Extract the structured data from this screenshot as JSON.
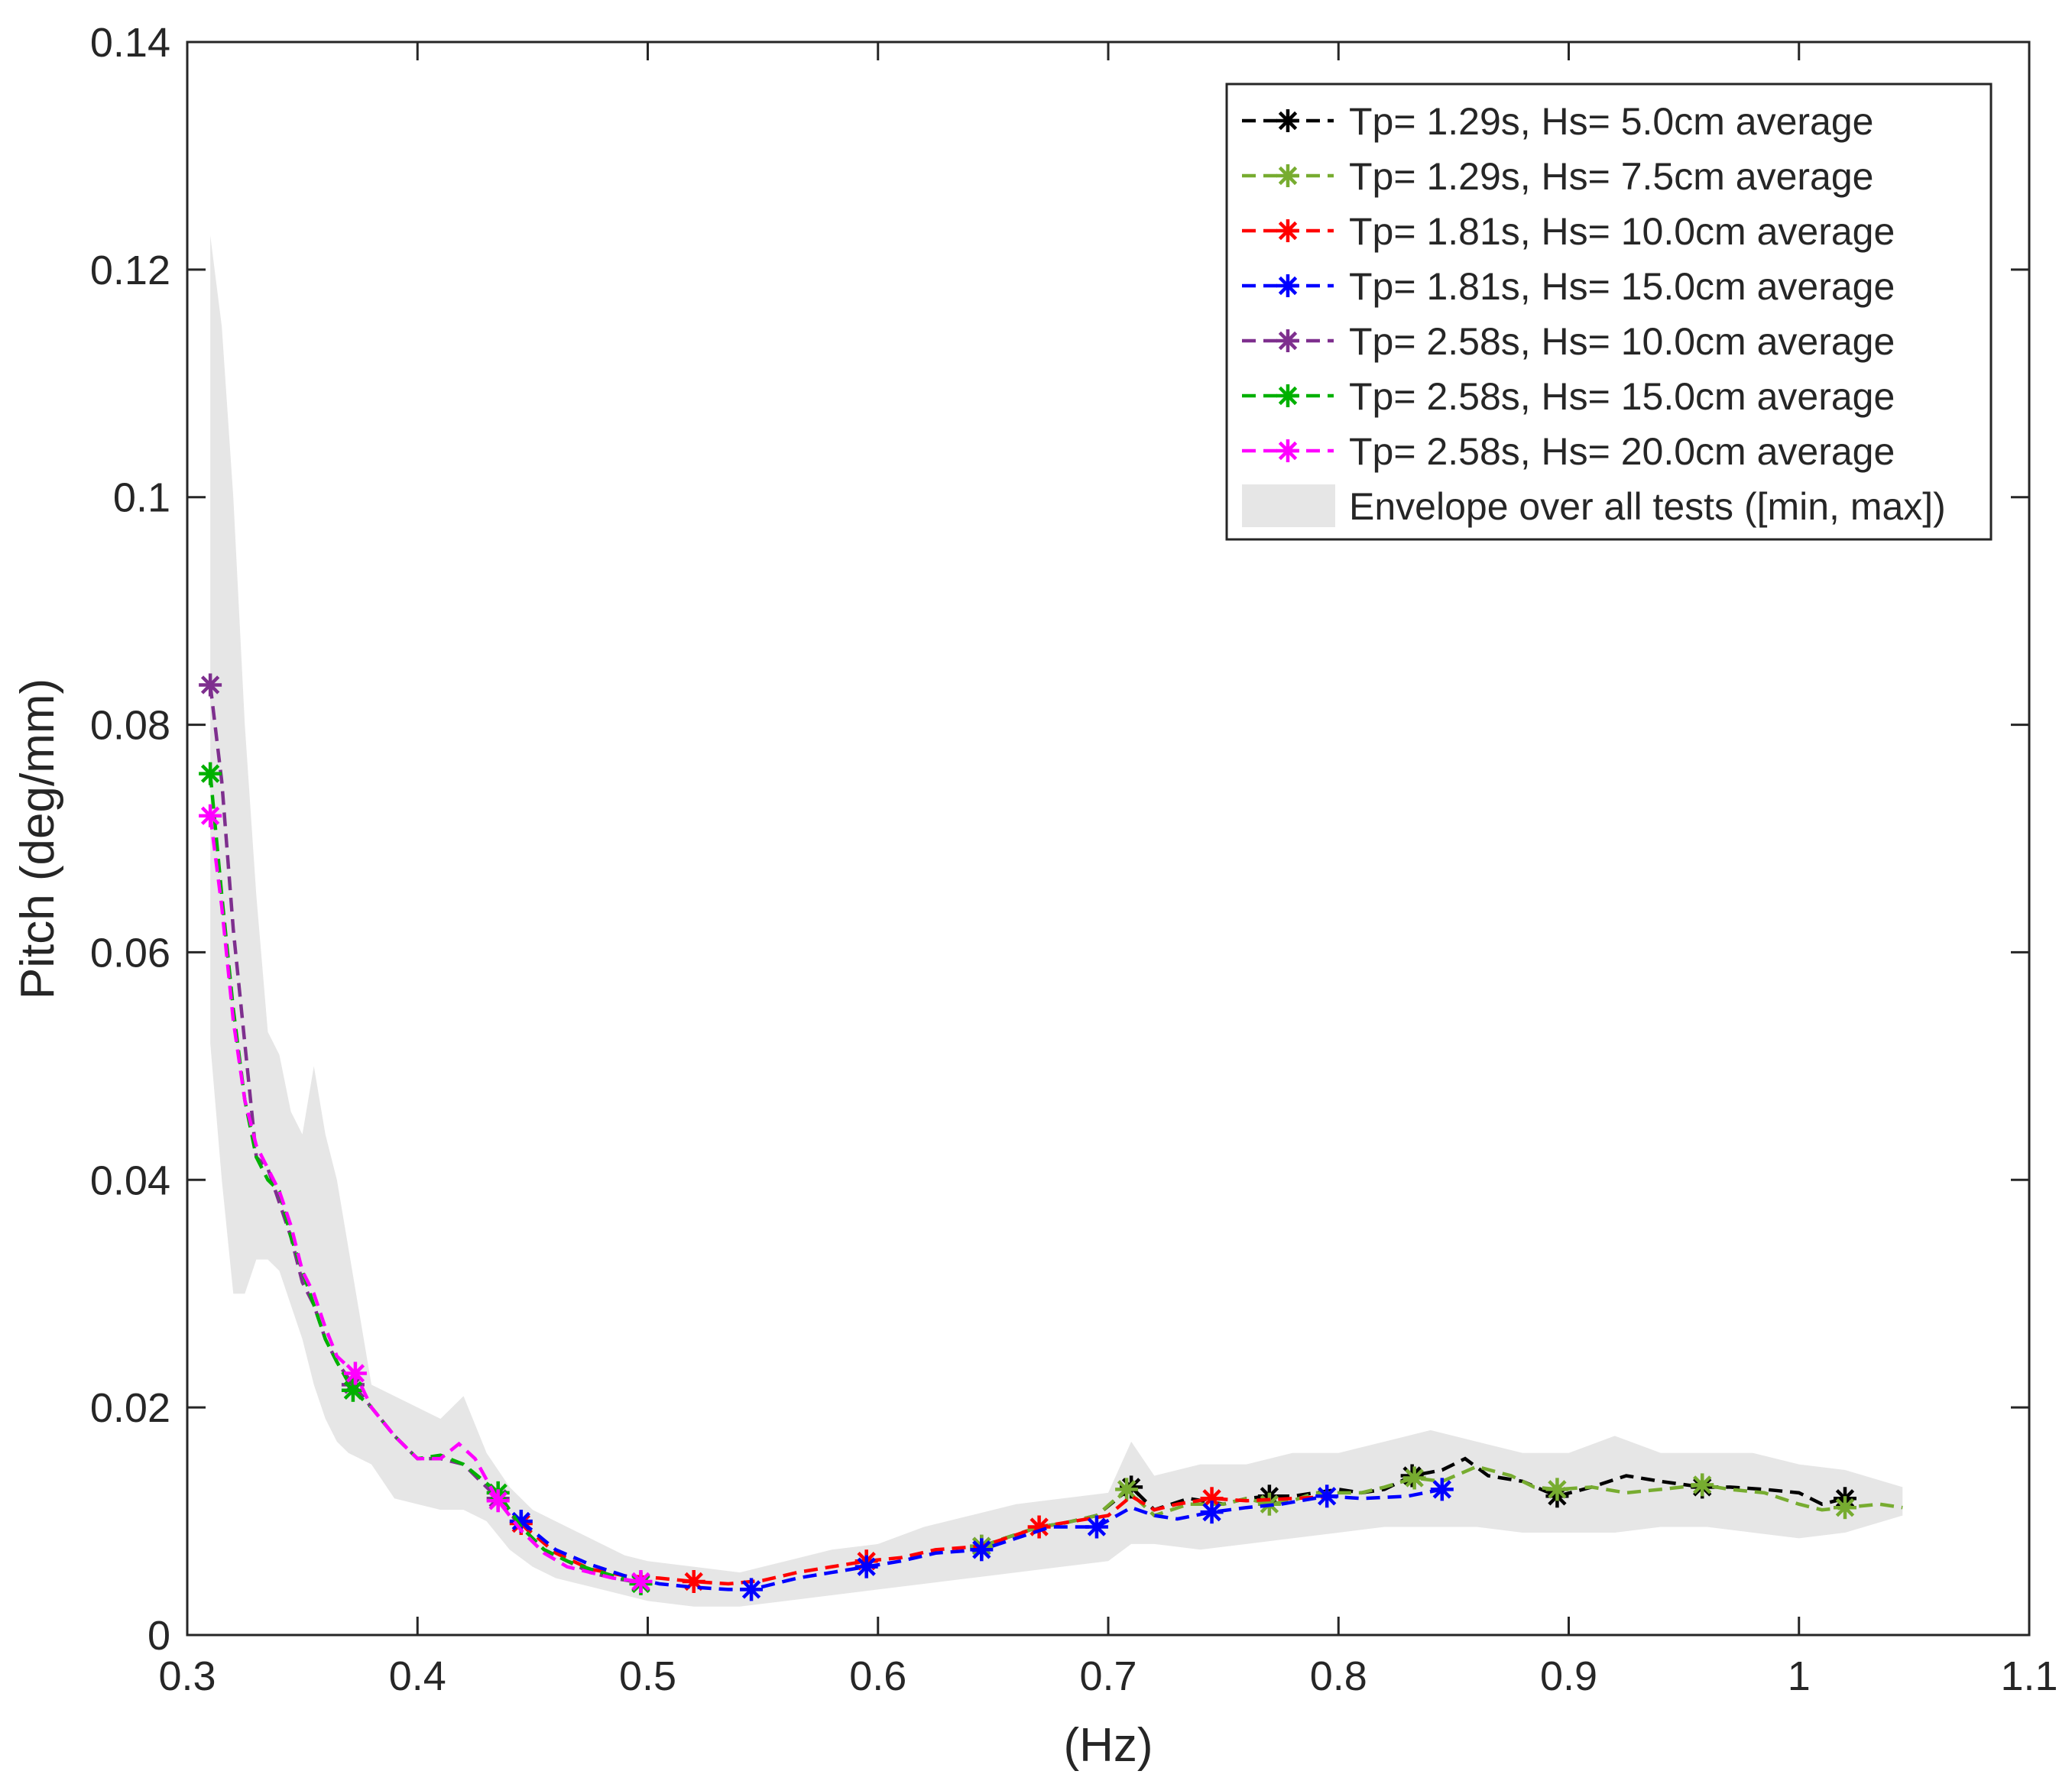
{
  "chart_data": {
    "type": "line",
    "title": "",
    "xlabel": "(Hz)",
    "ylabel": "Pitch (deg/mm)",
    "xlim": [
      0.3,
      1.1
    ],
    "ylim": [
      0,
      0.14
    ],
    "xticks": [
      "0.3",
      "0.4",
      "0.5",
      "0.6",
      "0.7",
      "0.8",
      "0.9",
      "1",
      "1.1"
    ],
    "yticks": [
      "0",
      "0.02",
      "0.04",
      "0.06",
      "0.08",
      "0.1",
      "0.12",
      "0.14"
    ],
    "legend_position": "top-right",
    "envelope": {
      "name": "Envelope over all tests ([min, max])",
      "color": "#e6e6e6",
      "x": [
        0.31,
        0.315,
        0.32,
        0.325,
        0.33,
        0.335,
        0.34,
        0.345,
        0.35,
        0.355,
        0.36,
        0.365,
        0.37,
        0.38,
        0.39,
        0.4,
        0.41,
        0.42,
        0.43,
        0.44,
        0.45,
        0.46,
        0.47,
        0.48,
        0.49,
        0.5,
        0.52,
        0.54,
        0.56,
        0.58,
        0.6,
        0.62,
        0.64,
        0.66,
        0.68,
        0.7,
        0.71,
        0.72,
        0.74,
        0.76,
        0.78,
        0.8,
        0.82,
        0.84,
        0.86,
        0.88,
        0.9,
        0.92,
        0.94,
        0.96,
        0.98,
        1.0,
        1.02,
        1.045
      ],
      "upper": [
        0.123,
        0.115,
        0.1,
        0.08,
        0.065,
        0.053,
        0.051,
        0.046,
        0.044,
        0.05,
        0.044,
        0.04,
        0.034,
        0.022,
        0.021,
        0.02,
        0.019,
        0.021,
        0.016,
        0.013,
        0.011,
        0.01,
        0.009,
        0.008,
        0.007,
        0.0065,
        0.006,
        0.0055,
        0.0065,
        0.0075,
        0.008,
        0.0095,
        0.0105,
        0.0115,
        0.012,
        0.0125,
        0.017,
        0.014,
        0.015,
        0.015,
        0.016,
        0.016,
        0.017,
        0.018,
        0.017,
        0.016,
        0.016,
        0.0175,
        0.016,
        0.016,
        0.016,
        0.015,
        0.0145,
        0.013
      ],
      "lower": [
        0.052,
        0.04,
        0.03,
        0.03,
        0.033,
        0.033,
        0.032,
        0.029,
        0.026,
        0.022,
        0.019,
        0.017,
        0.016,
        0.015,
        0.012,
        0.0115,
        0.011,
        0.011,
        0.01,
        0.0075,
        0.006,
        0.005,
        0.0045,
        0.004,
        0.0035,
        0.003,
        0.0025,
        0.0025,
        0.003,
        0.0035,
        0.004,
        0.0045,
        0.005,
        0.0055,
        0.006,
        0.0065,
        0.008,
        0.008,
        0.0075,
        0.008,
        0.0085,
        0.009,
        0.0095,
        0.0095,
        0.0095,
        0.009,
        0.009,
        0.009,
        0.0095,
        0.0095,
        0.009,
        0.0085,
        0.009,
        0.0105
      ]
    },
    "series": [
      {
        "name": "Tp= 1.29s, Hs= 5.0cm average",
        "color": "#000000",
        "x": [
          0.645,
          0.655,
          0.67,
          0.68,
          0.695,
          0.71,
          0.72,
          0.735,
          0.75,
          0.76,
          0.77,
          0.78,
          0.79,
          0.8,
          0.81,
          0.82,
          0.832,
          0.845,
          0.855,
          0.865,
          0.88,
          0.895,
          0.91,
          0.925,
          0.94,
          0.958,
          0.97,
          0.985,
          1.0,
          1.01,
          1.02
        ],
        "y": [
          0.0078,
          0.0085,
          0.0095,
          0.0098,
          0.0105,
          0.013,
          0.011,
          0.012,
          0.0115,
          0.012,
          0.0122,
          0.0122,
          0.0125,
          0.0128,
          0.0125,
          0.0128,
          0.014,
          0.0145,
          0.0155,
          0.014,
          0.0135,
          0.0122,
          0.013,
          0.014,
          0.0135,
          0.013,
          0.013,
          0.0128,
          0.0125,
          0.0115,
          0.012
        ],
        "markers_x": [
          0.645,
          0.71,
          0.77,
          0.832,
          0.895,
          0.958,
          1.02
        ],
        "markers_y": [
          0.0078,
          0.013,
          0.0122,
          0.014,
          0.0122,
          0.013,
          0.012
        ]
      },
      {
        "name": "Tp= 1.29s, Hs= 7.5cm average",
        "color": "#77ac30",
        "x": [
          0.645,
          0.655,
          0.67,
          0.68,
          0.695,
          0.708,
          0.72,
          0.735,
          0.75,
          0.76,
          0.77,
          0.78,
          0.79,
          0.8,
          0.81,
          0.82,
          0.833,
          0.845,
          0.86,
          0.875,
          0.885,
          0.895,
          0.91,
          0.925,
          0.94,
          0.958,
          0.97,
          0.985,
          1.0,
          1.01,
          1.02,
          1.035,
          1.045
        ],
        "y": [
          0.0078,
          0.0085,
          0.0095,
          0.0098,
          0.0105,
          0.0128,
          0.0105,
          0.0115,
          0.0115,
          0.012,
          0.0115,
          0.0118,
          0.0125,
          0.0125,
          0.0125,
          0.013,
          0.0138,
          0.0135,
          0.0148,
          0.014,
          0.013,
          0.0128,
          0.013,
          0.0125,
          0.0128,
          0.0132,
          0.0128,
          0.0125,
          0.0115,
          0.011,
          0.0112,
          0.0115,
          0.0112
        ],
        "markers_x": [
          0.645,
          0.708,
          0.77,
          0.833,
          0.895,
          0.958,
          1.02
        ],
        "markers_y": [
          0.0078,
          0.0128,
          0.0115,
          0.0138,
          0.0128,
          0.0132,
          0.0112
        ]
      },
      {
        "name": "Tp= 1.81s, Hs= 10.0cm average",
        "color": "#ff0000",
        "x": [
          0.445,
          0.46,
          0.475,
          0.49,
          0.505,
          0.52,
          0.535,
          0.55,
          0.565,
          0.58,
          0.595,
          0.61,
          0.625,
          0.645,
          0.66,
          0.67,
          0.685,
          0.7,
          0.71,
          0.72,
          0.73,
          0.745,
          0.76,
          0.78,
          0.8
        ],
        "y": [
          0.0098,
          0.0072,
          0.0058,
          0.0052,
          0.005,
          0.0047,
          0.0045,
          0.0048,
          0.0055,
          0.006,
          0.0065,
          0.0068,
          0.0075,
          0.0078,
          0.0088,
          0.0095,
          0.01,
          0.0105,
          0.0122,
          0.011,
          0.0115,
          0.012,
          0.0118,
          0.012,
          0.0122
        ],
        "markers_x": [
          0.445,
          0.52,
          0.595,
          0.67,
          0.745
        ],
        "markers_y": [
          0.0098,
          0.0047,
          0.0065,
          0.0095,
          0.012
        ]
      },
      {
        "name": "Tp= 1.81s, Hs= 15.0cm average",
        "color": "#0000ff",
        "x": [
          0.445,
          0.46,
          0.475,
          0.49,
          0.505,
          0.52,
          0.535,
          0.545,
          0.555,
          0.565,
          0.58,
          0.595,
          0.61,
          0.625,
          0.645,
          0.66,
          0.675,
          0.695,
          0.71,
          0.72,
          0.73,
          0.745,
          0.76,
          0.775,
          0.795,
          0.81,
          0.83,
          0.845
        ],
        "y": [
          0.01,
          0.0075,
          0.0062,
          0.0052,
          0.0045,
          0.0042,
          0.004,
          0.004,
          0.0045,
          0.005,
          0.0055,
          0.006,
          0.0065,
          0.0072,
          0.0075,
          0.0085,
          0.0095,
          0.0095,
          0.0112,
          0.0105,
          0.0102,
          0.0108,
          0.0112,
          0.0115,
          0.0122,
          0.012,
          0.0122,
          0.0128
        ],
        "markers_x": [
          0.445,
          0.545,
          0.595,
          0.645,
          0.695,
          0.745,
          0.795,
          0.845
        ],
        "markers_y": [
          0.01,
          0.004,
          0.006,
          0.0075,
          0.0095,
          0.0108,
          0.0122,
          0.0128
        ]
      },
      {
        "name": "Tp= 2.58s, Hs= 10.0cm average",
        "color": "#7e2f8e",
        "x": [
          0.31,
          0.315,
          0.32,
          0.325,
          0.33,
          0.335,
          0.34,
          0.345,
          0.35,
          0.355,
          0.36,
          0.365,
          0.372,
          0.38,
          0.39,
          0.4,
          0.41,
          0.42,
          0.435,
          0.445,
          0.455,
          0.465,
          0.475,
          0.485,
          0.497
        ],
        "y": [
          0.0835,
          0.075,
          0.062,
          0.052,
          0.042,
          0.041,
          0.038,
          0.035,
          0.031,
          0.029,
          0.026,
          0.024,
          0.022,
          0.02,
          0.0175,
          0.0155,
          0.0155,
          0.015,
          0.012,
          0.0095,
          0.0075,
          0.0065,
          0.0055,
          0.005,
          0.0046
        ],
        "markers_x": [
          0.31,
          0.372,
          0.435,
          0.497
        ],
        "markers_y": [
          0.0835,
          0.022,
          0.012,
          0.0046
        ]
      },
      {
        "name": "Tp= 2.58s, Hs= 15.0cm average",
        "color": "#00b000",
        "x": [
          0.31,
          0.315,
          0.32,
          0.325,
          0.33,
          0.335,
          0.34,
          0.345,
          0.35,
          0.355,
          0.36,
          0.365,
          0.372,
          0.38,
          0.39,
          0.4,
          0.41,
          0.42,
          0.435,
          0.445,
          0.455,
          0.465,
          0.475,
          0.485,
          0.497
        ],
        "y": [
          0.0757,
          0.065,
          0.055,
          0.047,
          0.042,
          0.04,
          0.039,
          0.035,
          0.032,
          0.029,
          0.026,
          0.024,
          0.0215,
          0.02,
          0.0175,
          0.0155,
          0.0158,
          0.015,
          0.0125,
          0.0095,
          0.0075,
          0.0065,
          0.0058,
          0.0052,
          0.0045
        ],
        "markers_x": [
          0.31,
          0.372,
          0.435,
          0.497
        ],
        "markers_y": [
          0.0757,
          0.0215,
          0.0125,
          0.0045
        ]
      },
      {
        "name": "Tp= 2.58s, Hs= 20.0cm average",
        "color": "#ff00ff",
        "x": [
          0.31,
          0.315,
          0.32,
          0.325,
          0.33,
          0.335,
          0.34,
          0.345,
          0.35,
          0.355,
          0.36,
          0.365,
          0.373,
          0.38,
          0.39,
          0.4,
          0.41,
          0.418,
          0.425,
          0.435,
          0.445,
          0.455,
          0.465,
          0.475,
          0.485,
          0.497
        ],
        "y": [
          0.072,
          0.064,
          0.054,
          0.047,
          0.043,
          0.041,
          0.039,
          0.036,
          0.032,
          0.03,
          0.027,
          0.0245,
          0.023,
          0.02,
          0.0175,
          0.0155,
          0.0155,
          0.0168,
          0.0155,
          0.0118,
          0.0092,
          0.0072,
          0.006,
          0.0055,
          0.005,
          0.0047
        ],
        "markers_x": [
          0.31,
          0.373,
          0.435,
          0.497
        ],
        "markers_y": [
          0.072,
          0.023,
          0.0118,
          0.0047
        ]
      }
    ]
  }
}
